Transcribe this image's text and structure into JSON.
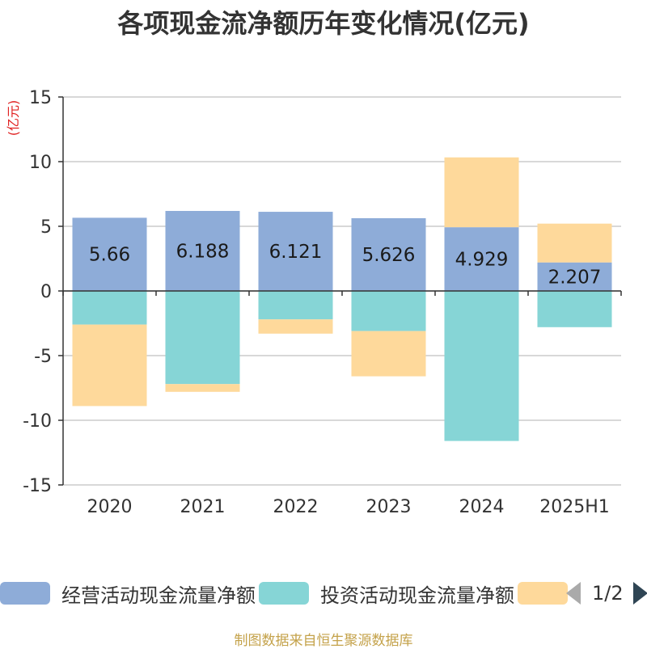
{
  "title": "各项现金流净额历年变化情况(亿元)",
  "source": "制图数据来自恒生聚源数据库",
  "chart_data": {
    "type": "bar",
    "stacked": true,
    "title": "各项现金流净额历年变化情况(亿元)",
    "unit_label": "(亿元)",
    "categories": [
      "2020",
      "2021",
      "2022",
      "2023",
      "2024",
      "2025H1"
    ],
    "ylim": [
      -15,
      15
    ],
    "yticks": [
      15,
      10,
      5,
      0,
      -5,
      -10,
      -15
    ],
    "grid": true,
    "legend_position": "bottom",
    "series": [
      {
        "name": "经营活动现金流量净额",
        "color": "#8eacd8",
        "show_labels": true,
        "values": [
          5.66,
          6.188,
          6.121,
          5.626,
          4.929,
          2.207
        ]
      },
      {
        "name": "投资活动现金流量净额",
        "color": "#86d5d6",
        "values": [
          -2.6,
          -7.2,
          -2.2,
          -3.1,
          -11.6,
          -2.8
        ]
      },
      {
        "name": "",
        "color": "#fed99b",
        "values": [
          -6.3,
          -0.6,
          -1.1,
          -3.5,
          5.4,
          3.0
        ]
      }
    ]
  },
  "legend": {
    "page_text": "1/2"
  }
}
